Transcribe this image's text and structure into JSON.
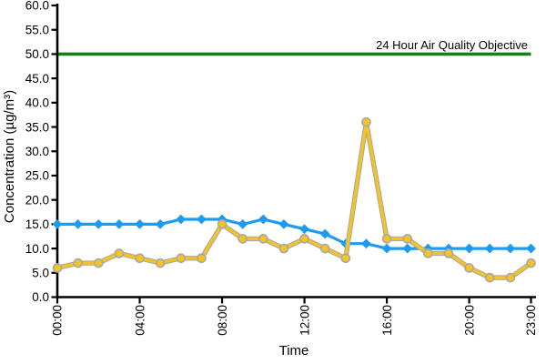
{
  "chart_data": {
    "type": "line",
    "title": "",
    "xlabel": "Time",
    "ylabel": "Concentration (µg/m³)",
    "ylim": [
      0,
      60
    ],
    "y_ticks": [
      0,
      5,
      10,
      15,
      20,
      25,
      30,
      35,
      40,
      45,
      50,
      55,
      60
    ],
    "y_tick_labels": [
      "0.0",
      "5.0",
      "10.0",
      "15.0",
      "20.0",
      "25.0",
      "30.0",
      "35.0",
      "40.0",
      "45.0",
      "50.0",
      "55.0",
      "60.0"
    ],
    "x": [
      "00:00",
      "01:00",
      "02:00",
      "03:00",
      "04:00",
      "05:00",
      "06:00",
      "07:00",
      "08:00",
      "09:00",
      "10:00",
      "11:00",
      "12:00",
      "13:00",
      "14:00",
      "15:00",
      "16:00",
      "17:00",
      "18:00",
      "19:00",
      "20:00",
      "21:00",
      "22:00",
      "23:00"
    ],
    "x_tick_labels": [
      "00:00",
      "04:00",
      "08:00",
      "12:00",
      "16:00",
      "20:00",
      "23:00"
    ],
    "grid": false,
    "legend": "none",
    "series": [
      {
        "id": "concentration-series-blue",
        "marker": "diamond",
        "color": "#1D9BF1",
        "marker_stroke": "#1D9BF1",
        "values": [
          15,
          15,
          15,
          15,
          15,
          15,
          16,
          16,
          16,
          15,
          16,
          15,
          14,
          13,
          11,
          11,
          10,
          10,
          10,
          10,
          10,
          10,
          10,
          10
        ]
      },
      {
        "id": "concentration-series-yellow",
        "marker": "circle",
        "color": "#F5C41F",
        "marker_stroke": "#A9A9A9",
        "values": [
          6,
          7,
          7,
          9,
          8,
          7,
          8,
          8,
          15,
          12,
          12,
          10,
          12,
          10,
          8,
          36,
          12,
          12,
          9,
          9,
          6,
          4,
          4,
          7
        ]
      }
    ],
    "objective_line": {
      "label": "24 Hour Air Quality Objective",
      "value": 50,
      "color": "#178117"
    },
    "axis_color": "#000000"
  }
}
